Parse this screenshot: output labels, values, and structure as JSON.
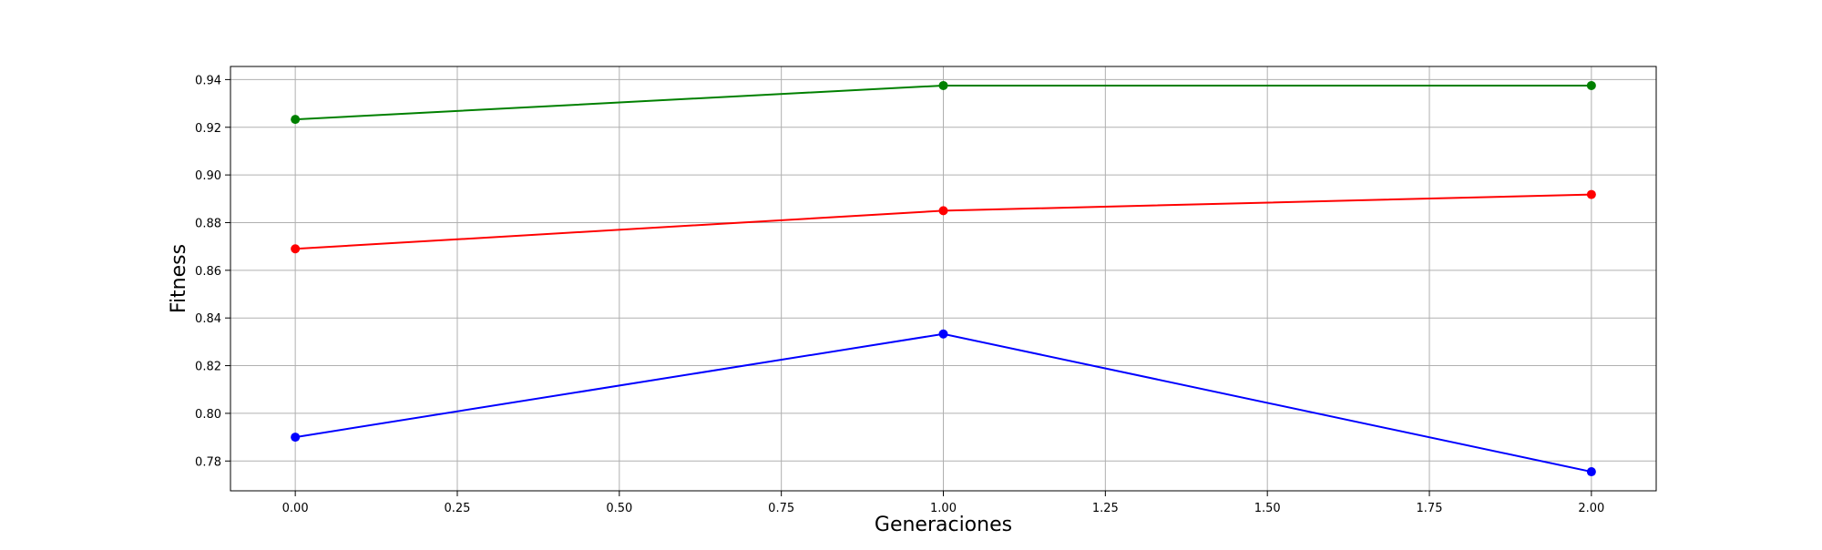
{
  "chart_data": {
    "type": "line",
    "title": "",
    "xlabel": "Generaciones",
    "ylabel": "Fitness",
    "x": [
      0,
      1,
      2
    ],
    "xlim": [
      -0.1,
      2.1
    ],
    "ylim": [
      0.7675,
      0.9455
    ],
    "x_ticks": [
      "0.00",
      "0.25",
      "0.50",
      "0.75",
      "1.00",
      "1.25",
      "1.50",
      "1.75",
      "2.00"
    ],
    "y_ticks": [
      "0.78",
      "0.80",
      "0.82",
      "0.84",
      "0.86",
      "0.88",
      "0.90",
      "0.92",
      "0.94"
    ],
    "grid": true,
    "legend": "none",
    "series": [
      {
        "color": "#008000",
        "marker": "circle",
        "values": [
          0.9233,
          0.9375,
          0.9375
        ]
      },
      {
        "color": "#ff0000",
        "marker": "circle",
        "values": [
          0.869,
          0.885,
          0.8918
        ]
      },
      {
        "color": "#0000ff",
        "marker": "circle",
        "values": [
          0.79,
          0.8333,
          0.7755
        ]
      }
    ]
  }
}
